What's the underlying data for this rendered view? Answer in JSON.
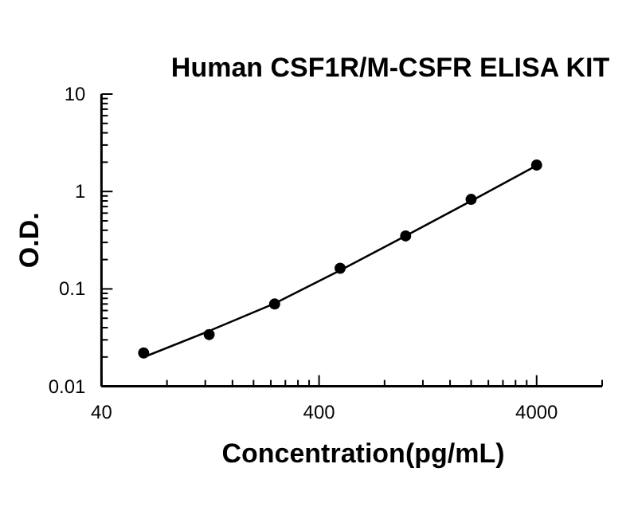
{
  "chart_data": {
    "type": "scatter",
    "title": "Human CSF1R/M-CSFR ELISA KIT",
    "xlabel": "Concentration(pg/mL)",
    "ylabel": "O.D.",
    "log": "xy",
    "grid": false,
    "xlim": [
      40,
      8000
    ],
    "ylim": [
      0.01,
      10
    ],
    "xticks": [
      40,
      {
        "value": 80,
        "label": null
      },
      {
        "value": 120,
        "label": null
      },
      {
        "value": 160,
        "label": null
      },
      {
        "value": 200,
        "label": null
      },
      {
        "value": 240,
        "label": null
      },
      {
        "value": 280,
        "label": null
      },
      {
        "value": 320,
        "label": null
      },
      {
        "value": 360,
        "label": null
      },
      400,
      {
        "value": 800,
        "label": null
      },
      {
        "value": 1200,
        "label": null
      },
      {
        "value": 1600,
        "label": null
      },
      {
        "value": 2000,
        "label": null
      },
      {
        "value": 2400,
        "label": null
      },
      {
        "value": 2800,
        "label": null
      },
      {
        "value": 3200,
        "label": null
      },
      {
        "value": 3600,
        "label": null
      },
      4000,
      {
        "value": 8000,
        "label": null
      }
    ],
    "yticks": [
      0.01,
      {
        "value": 0.02,
        "label": null
      },
      {
        "value": 0.03,
        "label": null
      },
      {
        "value": 0.04,
        "label": null
      },
      {
        "value": 0.05,
        "label": null
      },
      {
        "value": 0.06,
        "label": null
      },
      {
        "value": 0.07,
        "label": null
      },
      {
        "value": 0.08,
        "label": null
      },
      {
        "value": 0.09,
        "label": null
      },
      0.1,
      {
        "value": 0.2,
        "label": null
      },
      {
        "value": 0.3,
        "label": null
      },
      {
        "value": 0.4,
        "label": null
      },
      {
        "value": 0.5,
        "label": null
      },
      {
        "value": 0.6,
        "label": null
      },
      {
        "value": 0.7,
        "label": null
      },
      {
        "value": 0.8,
        "label": null
      },
      {
        "value": 0.9,
        "label": null
      },
      1,
      {
        "value": 2,
        "label": null
      },
      {
        "value": 3,
        "label": null
      },
      {
        "value": 4,
        "label": null
      },
      {
        "value": 5,
        "label": null
      },
      {
        "value": 6,
        "label": null
      },
      {
        "value": 7,
        "label": null
      },
      {
        "value": 8,
        "label": null
      },
      {
        "value": 9,
        "label": null
      },
      10
    ],
    "series": [
      {
        "marker": "circle",
        "color": "#000000",
        "x": [
          62.5,
          125,
          250,
          500,
          1000,
          2000,
          4000
        ],
        "values": [
          0.022,
          0.034,
          0.07,
          0.163,
          0.35,
          0.83,
          1.87
        ]
      },
      {
        "type": "line",
        "marker": "none",
        "line_style": "solid",
        "color": "#000000",
        "x": [
          62.5,
          125,
          250,
          500,
          1000,
          2000,
          4000
        ],
        "values": [
          0.0199,
          0.037,
          0.071,
          0.155,
          0.35,
          0.8,
          1.85
        ]
      }
    ]
  }
}
